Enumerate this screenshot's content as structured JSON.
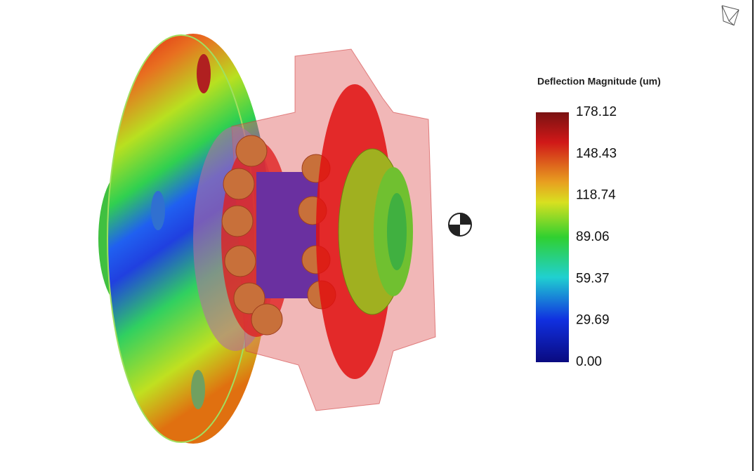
{
  "legend": {
    "title": "Deflection Magnitude (um)",
    "labels": [
      "178.12",
      "148.43",
      "118.74",
      "89.06",
      "59.37",
      "29.69",
      "0.00"
    ]
  }
}
